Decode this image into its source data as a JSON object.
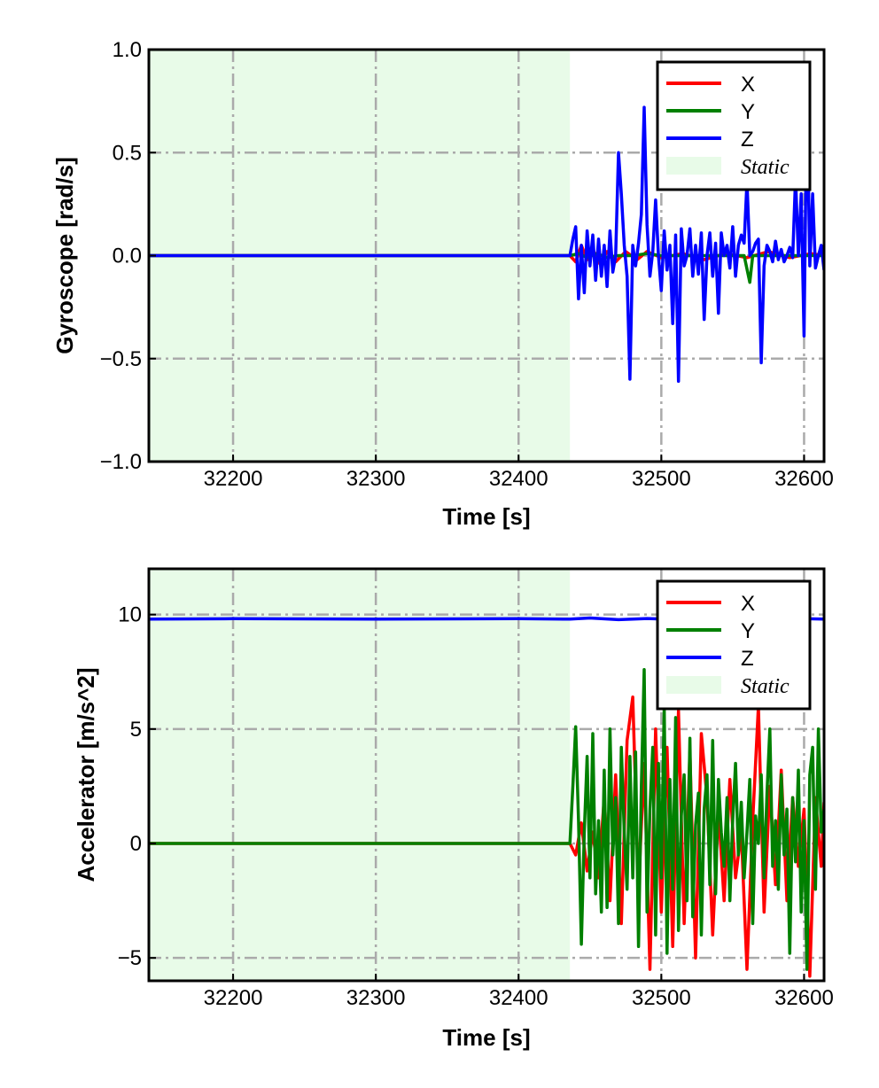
{
  "chart_data": [
    {
      "type": "line",
      "xlabel": "Time [s]",
      "ylabel": "Gyroscope [rad/s]",
      "xlim": [
        32141,
        32614
      ],
      "ylim": [
        -1.0,
        1.0
      ],
      "xticks": [
        32200,
        32300,
        32400,
        32500,
        32600
      ],
      "yticks": [
        -1.0,
        -0.5,
        0.0,
        0.5,
        1.0
      ],
      "ytick_labels": [
        "−1.0",
        "−0.5",
        "0.0",
        "0.5",
        "1.0"
      ],
      "grid": true,
      "legend_position": "top-right",
      "static_region": [
        32141,
        32436
      ],
      "legend": [
        "X",
        "Y",
        "Z",
        "Static"
      ],
      "series": [
        {
          "name": "X",
          "color": "#ff0000",
          "x": [
            32141,
            32436,
            32440,
            32444,
            32448,
            32452,
            32457,
            32462,
            32468,
            32475,
            32483,
            32490,
            32500,
            32515,
            32530,
            32545,
            32560,
            32575,
            32590,
            32605,
            32614
          ],
          "y": [
            0.0,
            0.0,
            -0.03,
            0.05,
            -0.02,
            0.03,
            -0.04,
            0.02,
            -0.03,
            0.02,
            -0.02,
            0.02,
            -0.01,
            0.01,
            -0.02,
            0.01,
            -0.01,
            0.02,
            -0.01,
            0.01,
            0.0
          ]
        },
        {
          "name": "Y",
          "color": "#008000",
          "x": [
            32141,
            32436,
            32442,
            32448,
            32455,
            32462,
            32470,
            32480,
            32490,
            32500,
            32520,
            32540,
            32558,
            32562,
            32564,
            32566,
            32580,
            32600,
            32614
          ],
          "y": [
            0.0,
            0.0,
            0.01,
            -0.01,
            0.01,
            -0.01,
            0.0,
            0.0,
            0.01,
            0.0,
            0.0,
            0.0,
            0.0,
            -0.13,
            0.0,
            0.0,
            0.0,
            0.0,
            0.0
          ]
        },
        {
          "name": "Z",
          "color": "#0000ff",
          "x": [
            32141,
            32436,
            32438,
            32440,
            32442,
            32444,
            32446,
            32448,
            32450,
            32452,
            32454,
            32456,
            32458,
            32460,
            32462,
            32464,
            32466,
            32468,
            32470,
            32472,
            32474,
            32476,
            32478,
            32480,
            32482,
            32484,
            32486,
            32488,
            32490,
            32492,
            32494,
            32496,
            32498,
            32500,
            32502,
            32504,
            32506,
            32508,
            32510,
            32512,
            32514,
            32516,
            32518,
            32520,
            32522,
            32524,
            32526,
            32528,
            32530,
            32532,
            32534,
            32536,
            32538,
            32540,
            32542,
            32544,
            32546,
            32548,
            32550,
            32552,
            32554,
            32556,
            32558,
            32560,
            32562,
            32564,
            32566,
            32568,
            32570,
            32572,
            32574,
            32576,
            32578,
            32580,
            32582,
            32584,
            32586,
            32588,
            32590,
            32592,
            32594,
            32596,
            32598,
            32600,
            32602,
            32604,
            32606,
            32608,
            32610,
            32612,
            32614
          ],
          "y": [
            0.0,
            0.0,
            0.08,
            0.14,
            -0.21,
            0.05,
            -0.18,
            0.12,
            -0.05,
            0.1,
            -0.12,
            0.08,
            -0.1,
            0.05,
            -0.15,
            0.12,
            -0.08,
            0.0,
            0.5,
            0.3,
            0.05,
            -0.1,
            -0.6,
            0.05,
            -0.05,
            0.06,
            0.2,
            0.72,
            0.15,
            -0.1,
            0.02,
            0.27,
            0.0,
            -0.17,
            0.12,
            -0.07,
            0.05,
            -0.33,
            0.1,
            -0.61,
            0.13,
            -0.05,
            0.0,
            0.13,
            -0.1,
            0.05,
            -0.09,
            0.11,
            -0.31,
            0.0,
            0.11,
            -0.1,
            0.06,
            -0.28,
            0.11,
            0.0,
            0.05,
            -0.06,
            0.14,
            -0.1,
            0.05,
            0.1,
            0.06,
            0.36,
            0.0,
            0.02,
            0.06,
            0.08,
            -0.52,
            -0.05,
            0.05,
            0.02,
            -0.03,
            0.07,
            -0.02,
            0.03,
            -0.03,
            0.0,
            0.04,
            -0.01,
            0.38,
            0.0,
            0.3,
            -0.39,
            0.81,
            -0.05,
            0.3,
            -0.06,
            0.0,
            0.05,
            -0.07
          ]
        }
      ]
    },
    {
      "type": "line",
      "xlabel": "Time [s]",
      "ylabel": "Accelerator [m/s^2]",
      "xlim": [
        32141,
        32614
      ],
      "ylim": [
        -6,
        12
      ],
      "xticks": [
        32200,
        32300,
        32400,
        32500,
        32600
      ],
      "yticks": [
        -5,
        0,
        5,
        10
      ],
      "ytick_labels": [
        "−5",
        "0",
        "5",
        "10"
      ],
      "grid": true,
      "legend_position": "top-right",
      "static_region": [
        32141,
        32436
      ],
      "legend": [
        "X",
        "Y",
        "Z",
        "Static"
      ],
      "series": [
        {
          "name": "X",
          "color": "#ff0000",
          "x": [
            32141,
            32436,
            32440,
            32444,
            32448,
            32452,
            32456,
            32460,
            32464,
            32468,
            32472,
            32476,
            32480,
            32484,
            32488,
            32492,
            32496,
            32500,
            32504,
            32508,
            32512,
            32516,
            32520,
            32524,
            32528,
            32532,
            32536,
            32540,
            32544,
            32548,
            32552,
            32556,
            32560,
            32564,
            32568,
            32572,
            32576,
            32580,
            32584,
            32588,
            32592,
            32596,
            32600,
            32604,
            32608,
            32612,
            32614
          ],
          "y": [
            0.0,
            0.0,
            -0.5,
            0.9,
            -1.2,
            0.5,
            -1.5,
            2.0,
            -2.5,
            3.0,
            -3.5,
            4.5,
            6.4,
            -2.0,
            3.5,
            -5.5,
            5.0,
            -3.0,
            4.2,
            -4.5,
            5.8,
            -3.5,
            4.0,
            -5.0,
            4.8,
            2.0,
            -4.0,
            1.5,
            -2.5,
            2.8,
            -1.5,
            0.5,
            -5.5,
            1.0,
            6.0,
            -3.0,
            2.5,
            -1.8,
            3.2,
            -2.5,
            2.0,
            -1.0,
            1.5,
            -5.8,
            2.0,
            -1.0,
            1.8
          ]
        },
        {
          "name": "Y",
          "color": "#008000",
          "x": [
            32141,
            32436,
            32438,
            32440,
            32442,
            32444,
            32446,
            32448,
            32450,
            32452,
            32454,
            32456,
            32458,
            32460,
            32462,
            32464,
            32466,
            32468,
            32470,
            32472,
            32474,
            32476,
            32478,
            32480,
            32482,
            32484,
            32486,
            32488,
            32490,
            32492,
            32494,
            32496,
            32498,
            32500,
            32502,
            32504,
            32506,
            32508,
            32510,
            32512,
            32514,
            32516,
            32518,
            32520,
            32522,
            32524,
            32526,
            32528,
            32530,
            32532,
            32534,
            32536,
            32538,
            32540,
            32542,
            32544,
            32546,
            32548,
            32550,
            32552,
            32554,
            32556,
            32558,
            32560,
            32562,
            32564,
            32566,
            32568,
            32570,
            32572,
            32574,
            32576,
            32578,
            32580,
            32582,
            32584,
            32586,
            32588,
            32590,
            32592,
            32594,
            32596,
            32598,
            32600,
            32602,
            32604,
            32606,
            32608,
            32610,
            32612,
            32614
          ],
          "y": [
            0.0,
            0.0,
            2.5,
            5.1,
            1.0,
            -4.4,
            0.5,
            3.8,
            -1.5,
            4.8,
            -2.2,
            1.0,
            -3.0,
            3.2,
            -2.8,
            5.0,
            -0.5,
            2.0,
            -3.5,
            4.2,
            0.5,
            -2.0,
            3.8,
            -1.5,
            4.0,
            -4.5,
            2.5,
            7.6,
            -3.0,
            1.5,
            4.2,
            -4.0,
            3.5,
            -1.5,
            6.0,
            -4.8,
            2.8,
            -2.0,
            5.5,
            -3.8,
            1.2,
            3.0,
            -2.5,
            4.6,
            -3.2,
            0.8,
            2.2,
            -4.0,
            1.5,
            3.0,
            -1.8,
            4.5,
            -2.2,
            2.8,
            0.5,
            -1.0,
            2.0,
            -2.5,
            1.0,
            3.5,
            -0.5,
            1.8,
            -1.5,
            0.5,
            2.8,
            -3.5,
            1.2,
            0.0,
            3.0,
            -1.5,
            2.2,
            5.0,
            -1.0,
            1.0,
            -2.0,
            3.0,
            -0.5,
            1.5,
            -4.8,
            2.0,
            -0.8,
            3.2,
            -3.0,
            1.0,
            -5.5,
            3.0,
            4.2,
            -2.0,
            5.0,
            0.5,
            1.5
          ]
        },
        {
          "name": "Z",
          "color": "#0000ff",
          "x": [
            32141,
            32200,
            32300,
            32400,
            32436,
            32450,
            32470,
            32490,
            32510,
            32530,
            32550,
            32570,
            32590,
            32600,
            32614
          ],
          "y": [
            9.8,
            9.82,
            9.8,
            9.82,
            9.8,
            9.85,
            9.78,
            9.83,
            9.79,
            9.82,
            9.8,
            9.84,
            9.78,
            9.82,
            9.8
          ]
        }
      ]
    }
  ]
}
